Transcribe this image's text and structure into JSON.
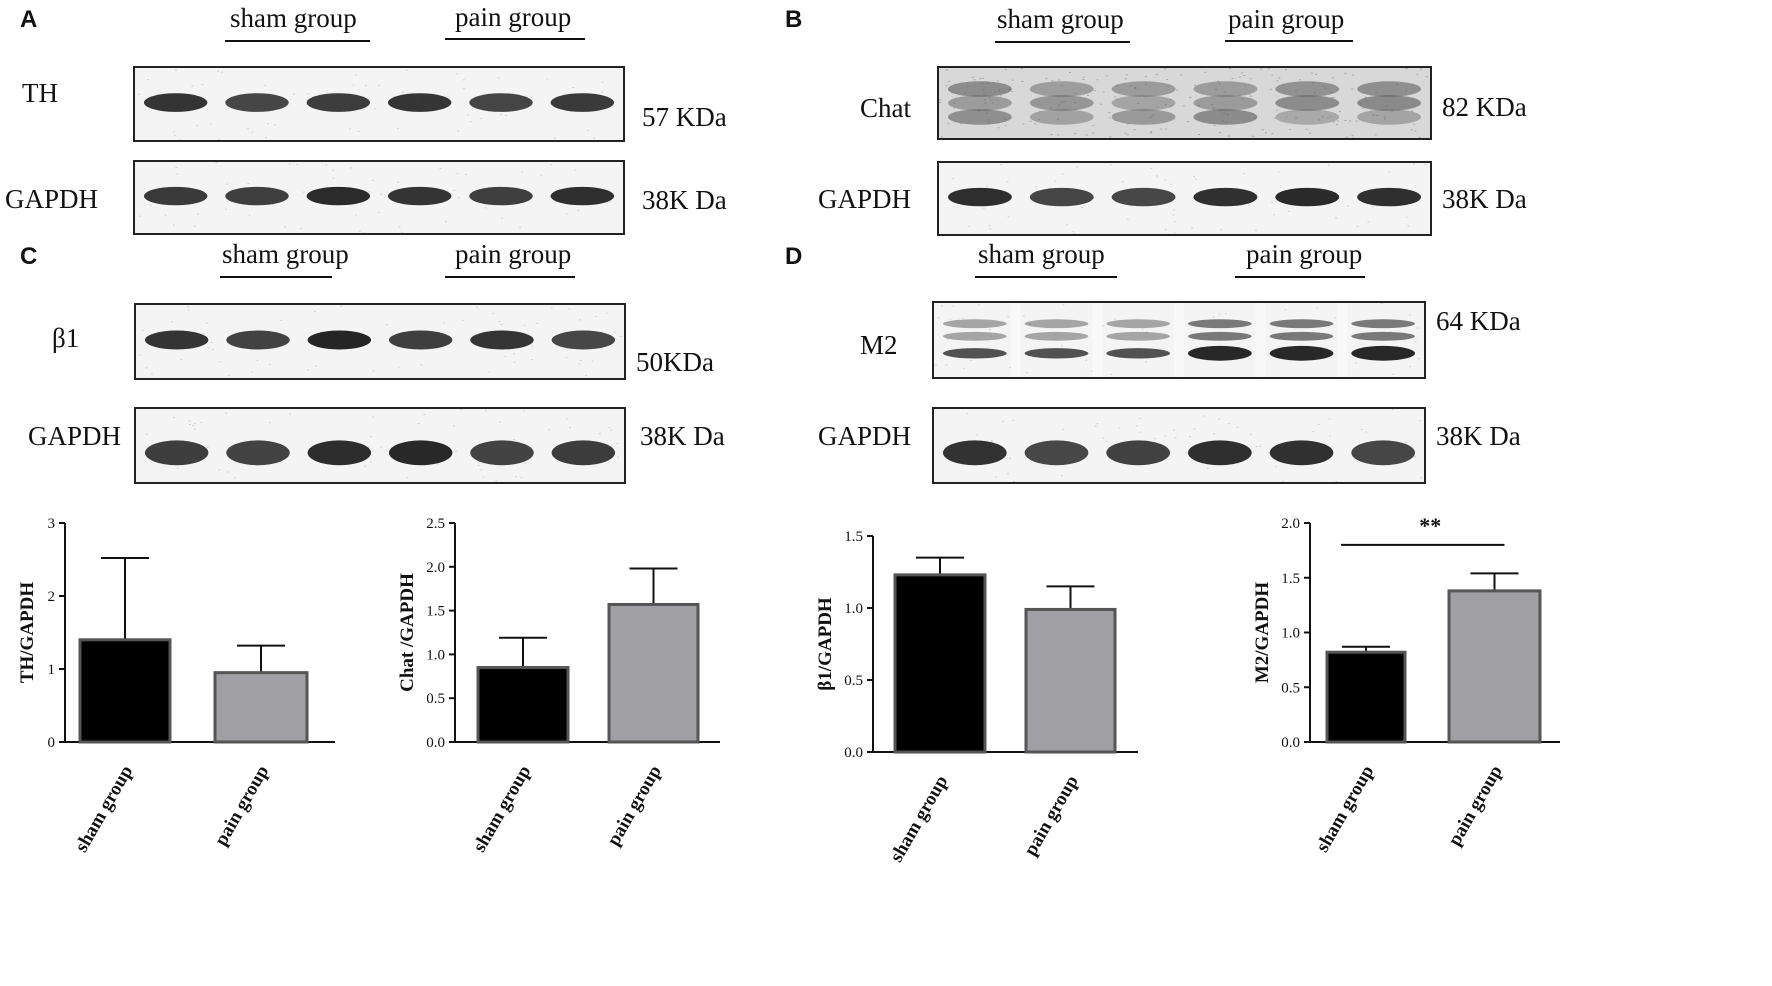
{
  "panels": {
    "A": {
      "letter": "A",
      "group1": "sham group",
      "group2": "pain group",
      "protein": "TH",
      "protein_kda": "57 KDa",
      "ctrl": "GAPDH",
      "ctrl_kda": "38K Da"
    },
    "B": {
      "letter": "B",
      "group1": "sham group",
      "group2": "pain group",
      "protein": "Chat",
      "protein_kda": "82 KDa",
      "ctrl": "GAPDH",
      "ctrl_kda": "38K Da"
    },
    "C": {
      "letter": "C",
      "group1": "sham group",
      "group2": "pain group",
      "protein": "β1",
      "protein_kda": "50KDa",
      "ctrl": "GAPDH",
      "ctrl_kda": "38K Da"
    },
    "D": {
      "letter": "D",
      "group1": "sham group",
      "group2": "pain group",
      "protein": "M2",
      "protein_kda": "64 KDa",
      "ctrl": "GAPDH",
      "ctrl_kda": "38K Da"
    }
  },
  "colors": {
    "sham": "#000000",
    "pain": "#a0a0a4",
    "edge": "#555555",
    "blot_bg": "#f4f4f4",
    "band": "#1c1c1c"
  },
  "chart_data": [
    {
      "type": "bar",
      "categories": [
        "sham  group",
        "pain group"
      ],
      "values": [
        1.4,
        0.95
      ],
      "errors": [
        1.12,
        0.37
      ],
      "ylabel": "TH/GAPDH",
      "ylim": [
        0,
        3
      ],
      "yticks": [
        "0",
        "1",
        "2",
        "3"
      ],
      "significance": ""
    },
    {
      "type": "bar",
      "categories": [
        "sham  group",
        "pain group"
      ],
      "values": [
        0.85,
        1.57
      ],
      "errors": [
        0.34,
        0.41
      ],
      "ylabel": "Chat /GAPDH",
      "ylim": [
        0,
        2.5
      ],
      "yticks": [
        "0.0",
        "0.5",
        "1.0",
        "1.5",
        "2.0",
        "2.5"
      ],
      "significance": ""
    },
    {
      "type": "bar",
      "categories": [
        "sham  group",
        "pain group"
      ],
      "values": [
        1.23,
        0.99
      ],
      "errors": [
        0.12,
        0.16
      ],
      "ylabel": "β1/GAPDH",
      "ylim": [
        0,
        1.5
      ],
      "yticks": [
        "0.0",
        "0.5",
        "1.0",
        "1.5"
      ],
      "significance": ""
    },
    {
      "type": "bar",
      "categories": [
        "sham  group",
        "pain group"
      ],
      "values": [
        0.82,
        1.38
      ],
      "errors": [
        0.05,
        0.16
      ],
      "ylabel": "M2/GAPDH",
      "ylim": [
        0,
        2.0
      ],
      "yticks": [
        "0.0",
        "0.5",
        "1.0",
        "1.5",
        "2.0"
      ],
      "significance": "**"
    }
  ]
}
